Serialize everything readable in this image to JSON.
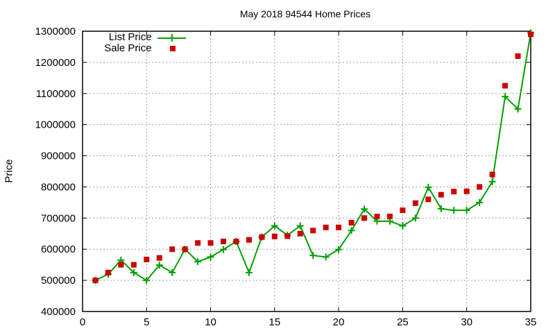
{
  "chart_data": {
    "type": "line",
    "title": "May 2018 94544 Home Prices",
    "xlabel": "",
    "ylabel": "Price",
    "xlim": [
      0,
      35
    ],
    "ylim": [
      400000,
      1300000
    ],
    "x_ticks": [
      "0",
      "5",
      "10",
      "15",
      "20",
      "25",
      "30",
      "35"
    ],
    "y_ticks": [
      "400000",
      "500000",
      "600000",
      "700000",
      "800000",
      "900000",
      "1000000",
      "1100000",
      "1200000",
      "1300000"
    ],
    "grid": true,
    "legend_position": "top-left",
    "x": [
      1,
      2,
      3,
      4,
      5,
      6,
      7,
      8,
      9,
      10,
      11,
      12,
      13,
      14,
      15,
      16,
      17,
      18,
      19,
      20,
      21,
      22,
      23,
      24,
      25,
      26,
      27,
      28,
      29,
      30,
      31,
      32,
      33,
      34,
      35
    ],
    "series": [
      {
        "name": "List Price",
        "style": "line+plus-markers",
        "color": "#00a000",
        "values": [
          500000,
          520000,
          565000,
          525000,
          500000,
          549000,
          525000,
          600000,
          560000,
          575000,
          599000,
          625000,
          525000,
          639000,
          675000,
          645000,
          675000,
          580000,
          575000,
          599000,
          660000,
          729000,
          690000,
          690000,
          675000,
          700000,
          799000,
          730000,
          725000,
          725000,
          750000,
          817000,
          1090000,
          1050000,
          1295000
        ]
      },
      {
        "name": "Sale Price",
        "style": "square-markers",
        "color": "#cc0000",
        "values": [
          500000,
          525000,
          550000,
          550000,
          567000,
          572000,
          600000,
          600000,
          620000,
          620000,
          625000,
          625000,
          630000,
          639000,
          641000,
          642000,
          650000,
          660000,
          670000,
          670000,
          685000,
          700000,
          705000,
          705000,
          725000,
          748000,
          760000,
          775000,
          785000,
          786000,
          800000,
          840000,
          1125000,
          1220000,
          1290000
        ]
      }
    ]
  },
  "legend": {
    "items": [
      {
        "label": "List Price"
      },
      {
        "label": "Sale Price"
      }
    ]
  }
}
